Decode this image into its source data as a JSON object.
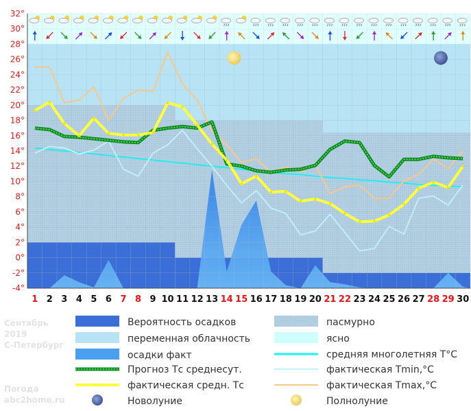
{
  "chart_data": {
    "type": "line",
    "y_unit": "°",
    "ylim": [
      -4,
      32
    ],
    "y_ticks": [
      -4,
      -2,
      0,
      2,
      4,
      6,
      8,
      10,
      12,
      14,
      16,
      18,
      20,
      22,
      24,
      26,
      28,
      30,
      32
    ],
    "days": [
      "1",
      "2",
      "3",
      "4",
      "5",
      "6",
      "7",
      "8",
      "9",
      "10",
      "11",
      "12",
      "13",
      "14",
      "15",
      "16",
      "17",
      "18",
      "19",
      "20",
      "21",
      "22",
      "23",
      "24",
      "25",
      "26",
      "27",
      "28",
      "29",
      "30"
    ],
    "weekend_days": [
      "1",
      "7",
      "8",
      "14",
      "15",
      "21",
      "22",
      "28",
      "29"
    ],
    "grid": true,
    "background_colors": {
      "clear": "#cfffff",
      "variable_cloud": "#b8e3f4",
      "overcast": "#aecbe0",
      "precip_prob": "#3b6ed6",
      "precip_fact": "#4a9fee"
    },
    "precip_probability_segments": [
      {
        "from_day": 1,
        "to_day": 10,
        "level": 2
      },
      {
        "from_day": 11,
        "to_day": 20,
        "level": 0
      },
      {
        "from_day": 21,
        "to_day": 30,
        "level": -2
      }
    ],
    "precip_fact": [
      -4.3,
      -4.3,
      -2.3,
      -3.2,
      -3.9,
      -0.3,
      -4.3,
      -4.3,
      -4.3,
      -4.3,
      -4.3,
      -4.3,
      11.5,
      -1.8,
      4.3,
      7.5,
      -1.8,
      -3.6,
      -4.0,
      -1.0,
      -3.2,
      -3.5,
      -3.9,
      -4.3,
      -4.3,
      -4.3,
      -4.3,
      -4.3,
      -2.0,
      -3.8
    ],
    "series": [
      {
        "name": "средняя многолетняя T°C",
        "color": "#22eeee",
        "values": [
          14.4,
          14.2,
          14.0,
          13.8,
          13.6,
          13.4,
          13.2,
          13.0,
          12.8,
          12.6,
          12.4,
          12.2,
          12.0,
          11.8,
          11.6,
          11.4,
          11.2,
          11.0,
          10.9,
          10.7,
          10.5,
          10.4,
          10.2,
          10.1,
          9.9,
          9.8,
          9.6,
          9.5,
          9.4,
          9.3
        ]
      },
      {
        "name": "фактическая Tmin,°C",
        "color": "#bfeff7",
        "values": [
          13.7,
          14.6,
          14.4,
          13.6,
          14.1,
          15.3,
          11.6,
          10.7,
          13.7,
          14.8,
          16.7,
          14.3,
          12.0,
          9.5,
          7.2,
          8.8,
          6.5,
          5.8,
          3.0,
          3.5,
          5.7,
          3.3,
          0.9,
          1.2,
          4.1,
          3.1,
          7.8,
          8.1,
          6.9,
          9.5
        ]
      },
      {
        "name": "фактическая Tmax,°C",
        "color": "#f8c888",
        "values": [
          25.0,
          25.0,
          20.3,
          20.7,
          22.4,
          18.0,
          20.9,
          22.0,
          21.8,
          27.0,
          22.8,
          20.7,
          16.6,
          14.8,
          12.5,
          13.0,
          11.2,
          11.9,
          11.3,
          12.2,
          8.4,
          9.3,
          9.5,
          7.8,
          7.8,
          10.1,
          10.9,
          12.9,
          11.7,
          14.0
        ]
      },
      {
        "name": "Прогноз Тс среднесут.",
        "color": "#0a8f1f",
        "values": [
          17.0,
          16.8,
          15.9,
          15.8,
          15.6,
          15.4,
          15.2,
          15.1,
          16.7,
          17.0,
          17.2,
          17.0,
          17.8,
          12.3,
          12.0,
          11.4,
          11.2,
          11.5,
          11.6,
          12.1,
          14.2,
          15.3,
          15.1,
          12.1,
          10.6,
          12.9,
          12.9,
          13.3,
          13.1,
          13.0
        ]
      },
      {
        "name": "фактическая средн. Тс",
        "color": "#ffff3c",
        "values": [
          19.3,
          20.4,
          17.6,
          16.0,
          18.3,
          16.3,
          16.1,
          16.1,
          16.4,
          20.3,
          19.8,
          17.4,
          14.9,
          12.8,
          9.7,
          10.7,
          8.6,
          8.7,
          7.4,
          7.7,
          7.1,
          5.8,
          4.7,
          4.8,
          5.6,
          7.0,
          9.1,
          9.9,
          9.2,
          12.0
        ]
      }
    ],
    "moons": [
      {
        "phase": "full",
        "day": 14,
        "level": 26.2
      },
      {
        "phase": "new",
        "day": 28,
        "level": 26.2
      }
    ],
    "header_rows": {
      "weather_icons": [
        "cloud-sun",
        "cloud-sun",
        "cloud-sun",
        "cloud-sun",
        "cloud-sun",
        "cloud-sun",
        "cloud-sun",
        "cloud-sun",
        "cloud-sun",
        "cloud-sun",
        "cloud-sun",
        "cloud-sun",
        "cloud-sun",
        "cloud-rain",
        "cloud-sun",
        "cloud-rain",
        "cloud-rain",
        "cloud-rain",
        "cloud-rain",
        "cloud-rain",
        "cloud-rain",
        "cloud-rain",
        "cloud-rain",
        "cloud-rain",
        "cloud-rain",
        "cloud-rain",
        "cloud-rain",
        "cloud-rain",
        "cloud-rain",
        "cloud-rain"
      ],
      "wind_directions_deg": [
        180,
        45,
        315,
        225,
        315,
        225,
        45,
        315,
        225,
        45,
        0,
        315,
        45,
        180,
        135,
        315,
        225,
        135,
        315,
        315,
        180,
        0,
        45,
        180,
        135,
        45,
        225,
        180,
        225,
        180
      ]
    }
  },
  "info": {
    "month": "Сентябрь",
    "year": "2019",
    "city": "С-Петербург",
    "site_label": "Погода",
    "site": "abc2home.ru"
  },
  "legend": {
    "precip_prob": "Вероятность осадков",
    "variable_cloud": "переменная облачность",
    "precip_fact": "осадки факт",
    "forecast_mean": "Прогноз Тс среднесут.",
    "actual_mean": "фактическая средн. Тс",
    "new_moon": "Новолуние",
    "overcast": "пасмурно",
    "clear": "ясно",
    "clim_mean": "средняя многолетняя T°C",
    "tmin": "фактическая Tmin,°C",
    "tmax": "фактическая Tmax,°C",
    "full_moon": "Полнолуние"
  },
  "colors": {
    "weekend_label": "#ee1111",
    "weekday_label": "#111111",
    "grid": "#9fb8c8",
    "axis": "#4a4a4a"
  }
}
